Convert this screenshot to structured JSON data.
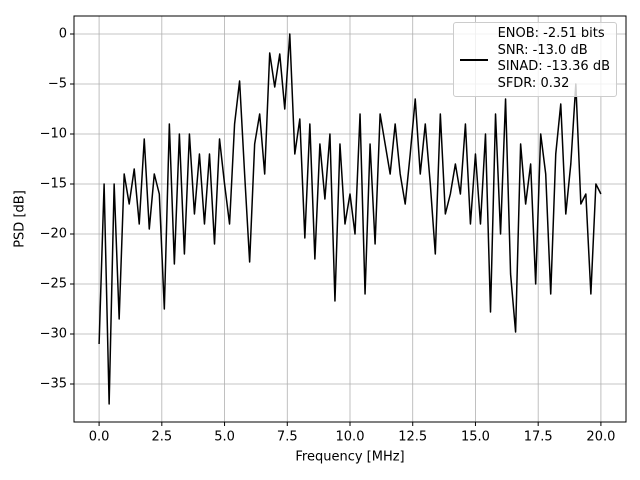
{
  "chart_data": {
    "type": "line",
    "xlabel": "Frequency [MHz]",
    "ylabel": "PSD [dB]",
    "x": [
      0.0,
      0.2,
      0.4,
      0.6,
      0.8,
      1.0,
      1.2,
      1.4,
      1.6,
      1.8,
      2.0,
      2.2,
      2.4,
      2.6,
      2.8,
      3.0,
      3.2,
      3.4,
      3.6,
      3.8,
      4.0,
      4.2,
      4.4,
      4.6,
      4.8,
      5.0,
      5.2,
      5.4,
      5.6,
      5.8,
      6.0,
      6.2,
      6.4,
      6.6,
      6.8,
      7.0,
      7.2,
      7.4,
      7.6,
      7.8,
      8.0,
      8.2,
      8.4,
      8.6,
      8.8,
      9.0,
      9.2,
      9.4,
      9.6,
      9.8,
      10.0,
      10.2,
      10.4,
      10.6,
      10.8,
      11.0,
      11.2,
      11.4,
      11.6,
      11.8,
      12.0,
      12.2,
      12.4,
      12.6,
      12.8,
      13.0,
      13.2,
      13.4,
      13.6,
      13.8,
      14.0,
      14.2,
      14.4,
      14.6,
      14.8,
      15.0,
      15.2,
      15.4,
      15.6,
      15.8,
      16.0,
      16.2,
      16.4,
      16.6,
      16.8,
      17.0,
      17.2,
      17.4,
      17.6,
      17.8,
      18.0,
      18.2,
      18.4,
      18.6,
      18.8,
      19.0,
      19.2,
      19.4,
      19.6,
      19.8,
      20.0
    ],
    "series": [
      {
        "name": "ENOB: -2.51 bits\nSNR: -13.0 dB\nSINAD: -13.36 dB\nSFDR: 0.32",
        "color": "#000000",
        "values": [
          -31,
          -15,
          -37,
          -15,
          -28.5,
          -14,
          -17,
          -13.5,
          -19,
          -10.5,
          -19.5,
          -14,
          -16,
          -27.5,
          -9,
          -23,
          -10,
          -22,
          -10,
          -18,
          -12,
          -19,
          -12,
          -21,
          -10.5,
          -15,
          -19,
          -9,
          -4.7,
          -14,
          -22.8,
          -11,
          -8,
          -14,
          -1.9,
          -5.3,
          -2,
          -7.5,
          0.0,
          -12,
          -8.5,
          -20.4,
          -9,
          -22.5,
          -11,
          -16.5,
          -10,
          -26.7,
          -11,
          -19,
          -16,
          -20,
          -8,
          -26,
          -11,
          -21,
          -8,
          -11,
          -14,
          -9,
          -14,
          -17,
          -12,
          -6.5,
          -14,
          -9,
          -15,
          -22,
          -8,
          -18,
          -16,
          -13,
          -16,
          -9,
          -19,
          -12,
          -19,
          -10,
          -27.8,
          -8,
          -20,
          -6.5,
          -24,
          -29.8,
          -11,
          -17,
          -13,
          -25,
          -10,
          -14,
          -26,
          -12,
          -7,
          -18,
          -13,
          -5,
          -17,
          -16,
          -26,
          -15,
          -16
        ]
      }
    ],
    "xlim": [
      -1.0,
      21.0
    ],
    "ylim": [
      -38.8,
      1.8
    ],
    "xticks": [
      {
        "value": 0,
        "label": "0.0"
      },
      2.5,
      {
        "value": 5,
        "label": "5.0"
      },
      7.5,
      {
        "value": 10,
        "label": "10.0"
      },
      12.5,
      {
        "value": 15,
        "label": "15.0"
      },
      17.5,
      {
        "value": 20,
        "label": "20.0"
      }
    ],
    "yticks": [
      0,
      {
        "value": -5,
        "label": "−5"
      },
      {
        "value": -10,
        "label": "−10"
      },
      {
        "value": -15,
        "label": "−15"
      },
      {
        "value": -20,
        "label": "−20"
      },
      {
        "value": -25,
        "label": "−25"
      },
      {
        "value": -30,
        "label": "−30"
      },
      {
        "value": -35,
        "label": "−35"
      }
    ],
    "grid": true,
    "legend": "upper right"
  }
}
